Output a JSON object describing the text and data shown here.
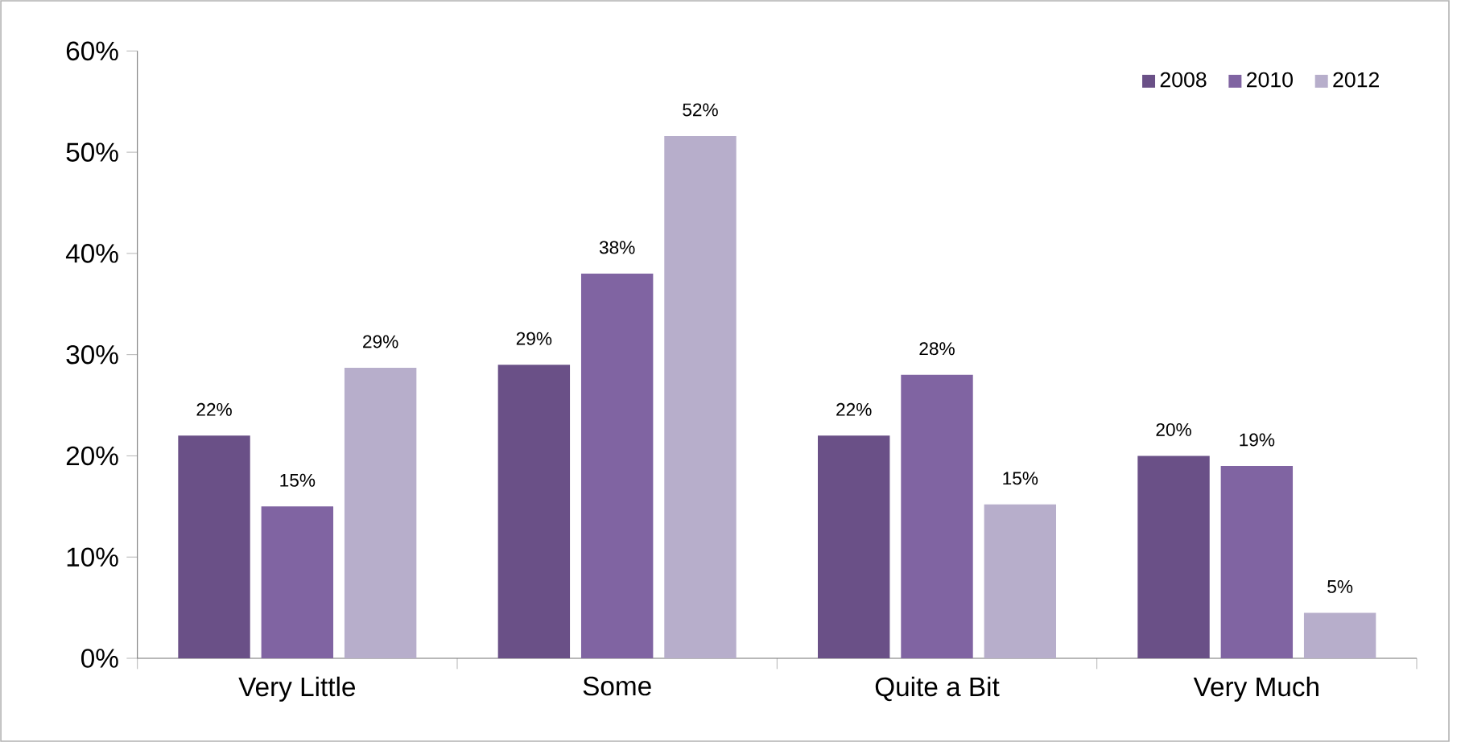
{
  "chart_data": {
    "type": "bar",
    "categories": [
      "Very Little",
      "Some",
      "Quite a Bit",
      "Very Much"
    ],
    "series": [
      {
        "name": "2008",
        "color": "#6a5087",
        "values": [
          22,
          29,
          22,
          20
        ],
        "value_labels": [
          "22%",
          "29%",
          "22%",
          "20%"
        ]
      },
      {
        "name": "2010",
        "color": "#8064a2",
        "values": [
          15,
          38,
          28,
          19
        ],
        "value_labels": [
          "15%",
          "38%",
          "28%",
          "19%"
        ]
      },
      {
        "name": "2012",
        "color": "#b7aecb",
        "values": [
          28.7,
          51.6,
          15.2,
          4.5
        ],
        "value_labels": [
          "29%",
          "52%",
          "15%",
          "5%"
        ]
      }
    ],
    "ylim": [
      0,
      60
    ],
    "yticks": [
      {
        "value": 0,
        "label": "0%"
      },
      {
        "value": 10,
        "label": "10%"
      },
      {
        "value": 20,
        "label": "20%"
      },
      {
        "value": 30,
        "label": "30%"
      },
      {
        "value": 40,
        "label": "40%"
      },
      {
        "value": 50,
        "label": "50%"
      },
      {
        "value": 60,
        "label": "60%"
      }
    ],
    "grid": false,
    "legend": "top right"
  }
}
